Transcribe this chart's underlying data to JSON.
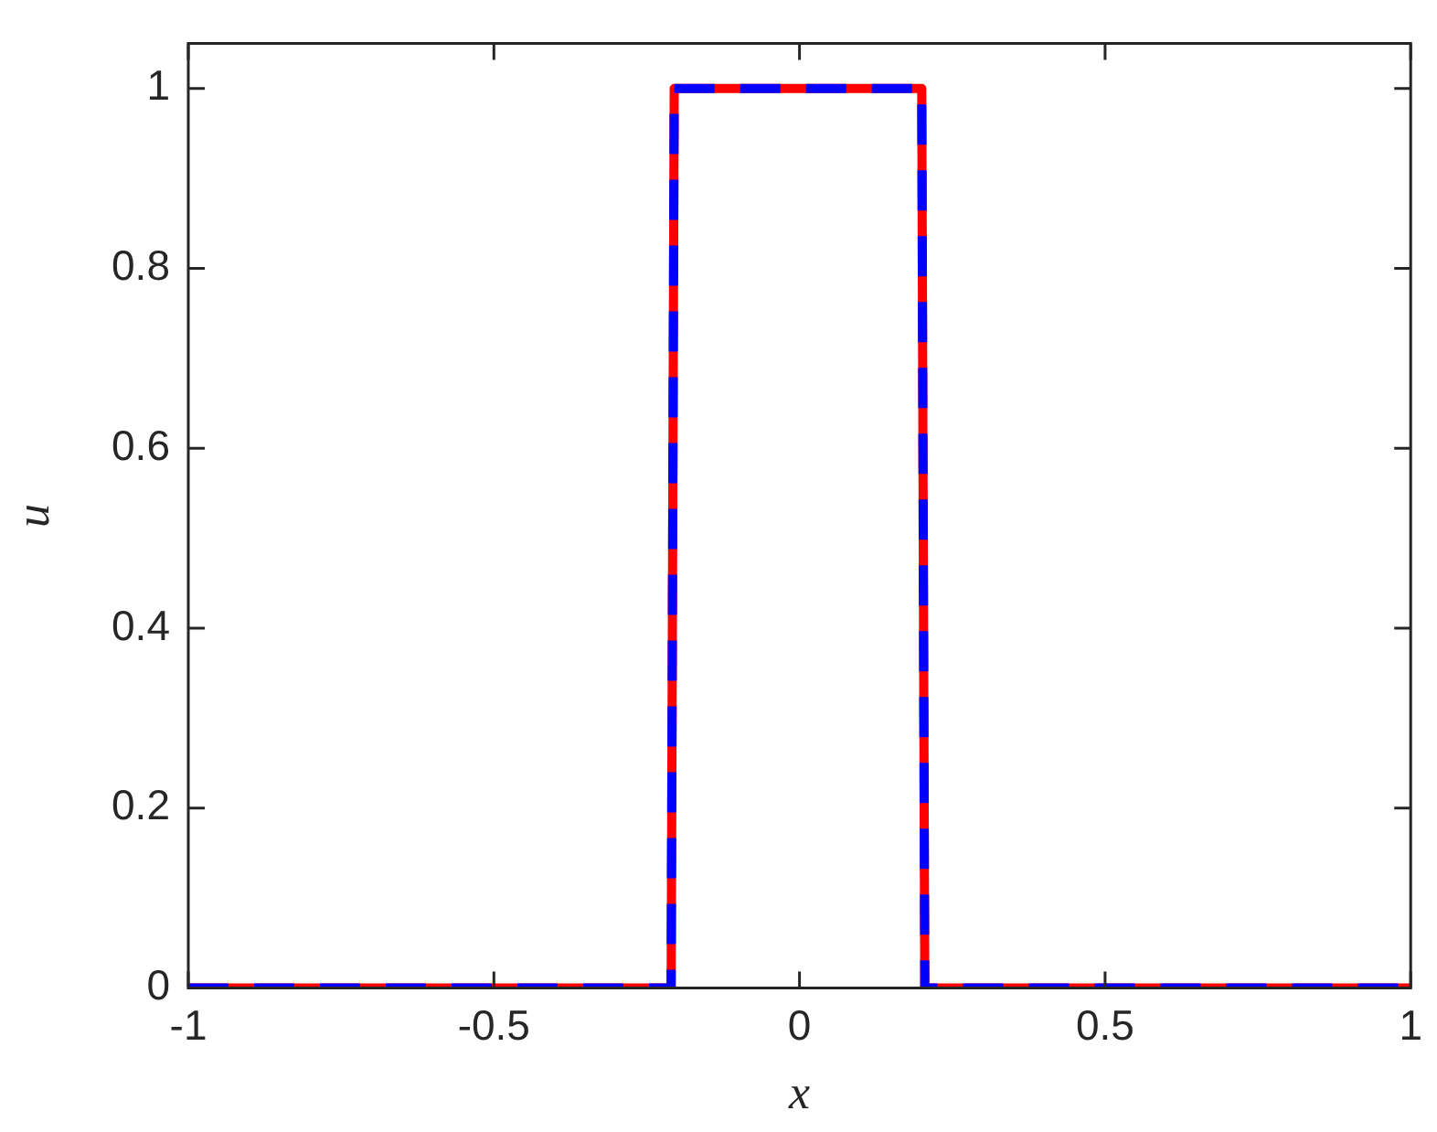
{
  "chart_data": {
    "type": "line",
    "xlabel": "x",
    "ylabel": "u",
    "xlim": [
      -1,
      1
    ],
    "xticks": [
      -1,
      -0.5,
      0,
      0.5,
      1
    ],
    "ylim": [
      0,
      1.05
    ],
    "yticks": [
      0,
      0.2,
      0.4,
      0.6,
      0.8,
      1
    ],
    "grid": false,
    "legend": false,
    "marker": "none",
    "series": [
      {
        "color": "#ff0000",
        "line_style": "solid",
        "x": [
          -1,
          -0.21,
          -0.205,
          0.2,
          0.205,
          1
        ],
        "values": [
          0,
          0,
          1,
          1,
          0,
          0
        ]
      },
      {
        "color": "#0000ff",
        "line_style": "dashed",
        "x": [
          -1,
          -0.21,
          -0.205,
          0.2,
          0.205,
          1
        ],
        "values": [
          0,
          0,
          1,
          1,
          0,
          0
        ]
      }
    ]
  }
}
